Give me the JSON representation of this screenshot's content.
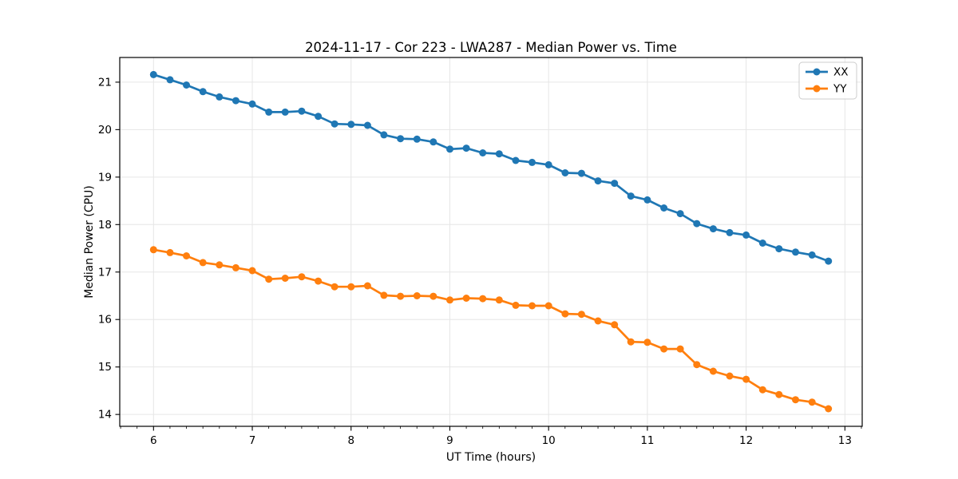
{
  "chart_data": {
    "type": "line",
    "title": "2024-11-17 - Cor 223 - LWA287 - Median Power vs. Time",
    "xlabel": "UT Time (hours)",
    "ylabel": "Median Power (CPU)",
    "xlim": [
      5.658,
      13.175
    ],
    "ylim": [
      13.75,
      21.52
    ],
    "xticks": [
      6,
      7,
      8,
      9,
      10,
      11,
      12,
      13
    ],
    "yticks": [
      14,
      15,
      16,
      17,
      18,
      19,
      20,
      21
    ],
    "x_minor_step": 0.1667,
    "grid": true,
    "grid_color": "#e6e6e6",
    "spine_color": "#000000",
    "background_color": "#ffffff",
    "legend": {
      "position": "upper right",
      "border_color": "#cccccc"
    },
    "x": [
      6.0,
      6.167,
      6.333,
      6.5,
      6.667,
      6.833,
      7.0,
      7.167,
      7.333,
      7.5,
      7.667,
      7.833,
      8.0,
      8.167,
      8.333,
      8.5,
      8.667,
      8.833,
      9.0,
      9.167,
      9.333,
      9.5,
      9.667,
      9.833,
      10.0,
      10.167,
      10.333,
      10.5,
      10.667,
      10.833,
      11.0,
      11.167,
      11.333,
      11.5,
      11.667,
      11.833,
      12.0,
      12.167,
      12.333,
      12.5,
      12.667,
      12.833
    ],
    "series": [
      {
        "name": "XX",
        "color": "#1f77b4",
        "values": [
          21.16,
          21.05,
          20.94,
          20.8,
          20.69,
          20.61,
          20.54,
          20.37,
          20.37,
          20.39,
          20.28,
          20.12,
          20.11,
          20.09,
          19.89,
          19.81,
          19.8,
          19.74,
          19.59,
          19.61,
          19.51,
          19.49,
          19.35,
          19.31,
          19.26,
          19.09,
          19.08,
          18.92,
          18.87,
          18.6,
          18.52,
          18.35,
          18.23,
          18.02,
          17.91,
          17.83,
          17.78,
          17.61,
          17.49,
          17.42,
          17.36,
          17.23
        ]
      },
      {
        "name": "YY",
        "color": "#ff7f0e",
        "values": [
          17.47,
          17.41,
          17.34,
          17.2,
          17.15,
          17.09,
          17.03,
          16.85,
          16.87,
          16.9,
          16.81,
          16.69,
          16.69,
          16.71,
          16.51,
          16.49,
          16.5,
          16.49,
          16.41,
          16.45,
          16.44,
          16.41,
          16.3,
          16.29,
          16.29,
          16.12,
          16.11,
          15.97,
          15.89,
          15.53,
          15.52,
          15.38,
          15.38,
          15.05,
          14.91,
          14.81,
          14.74,
          14.52,
          14.42,
          14.31,
          14.26,
          14.12
        ]
      }
    ]
  }
}
